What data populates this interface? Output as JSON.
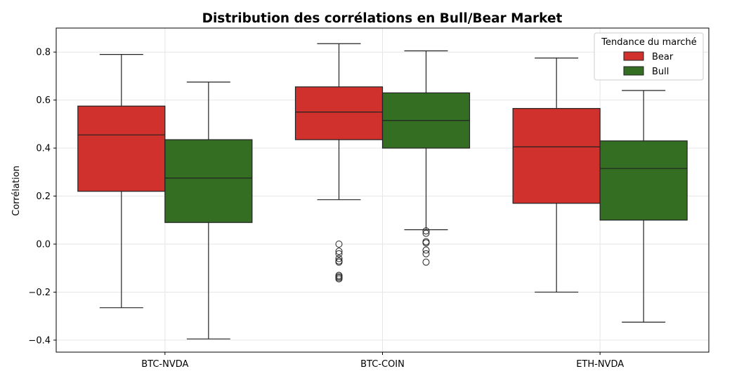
{
  "chart_data": {
    "type": "box",
    "title": "Distribution des corrélations en Bull/Bear Market",
    "xlabel": "",
    "ylabel": "Corrélation",
    "ylim": [
      -0.45,
      0.9
    ],
    "yticks": [
      -0.4,
      -0.2,
      0.0,
      0.2,
      0.4,
      0.6,
      0.8
    ],
    "ytick_labels": [
      "−0.4",
      "−0.2",
      "0.0",
      "0.2",
      "0.4",
      "0.6",
      "0.8"
    ],
    "grid": true,
    "categories": [
      "BTC-NVDA",
      "BTC-COIN",
      "ETH-NVDA"
    ],
    "legend": {
      "title": "Tendance du marché",
      "position": "top-right",
      "entries": [
        "Bear",
        "Bull"
      ]
    },
    "colors": {
      "Bear": "#d0312d",
      "Bull": "#336e23",
      "edge": "#222222"
    },
    "series": [
      {
        "name": "Bear",
        "boxes": [
          {
            "whisker_low": -0.265,
            "q1": 0.22,
            "median": 0.455,
            "q3": 0.575,
            "whisker_high": 0.79,
            "outliers": []
          },
          {
            "whisker_low": 0.185,
            "q1": 0.435,
            "median": 0.55,
            "q3": 0.655,
            "whisker_high": 0.835,
            "outliers": [
              0.0,
              -0.03,
              -0.04,
              -0.06,
              -0.07,
              -0.075,
              -0.13,
              -0.135,
              -0.14,
              -0.145
            ]
          },
          {
            "whisker_low": -0.2,
            "q1": 0.17,
            "median": 0.405,
            "q3": 0.565,
            "whisker_high": 0.775,
            "outliers": []
          }
        ]
      },
      {
        "name": "Bull",
        "boxes": [
          {
            "whisker_low": -0.395,
            "q1": 0.09,
            "median": 0.275,
            "q3": 0.435,
            "whisker_high": 0.675,
            "outliers": []
          },
          {
            "whisker_low": 0.06,
            "q1": 0.4,
            "median": 0.515,
            "q3": 0.63,
            "whisker_high": 0.805,
            "outliers": [
              0.055,
              0.045,
              0.01,
              0.005,
              -0.025,
              -0.04,
              -0.075
            ]
          },
          {
            "whisker_low": -0.325,
            "q1": 0.1,
            "median": 0.315,
            "q3": 0.43,
            "whisker_high": 0.64,
            "outliers": []
          }
        ]
      }
    ]
  }
}
